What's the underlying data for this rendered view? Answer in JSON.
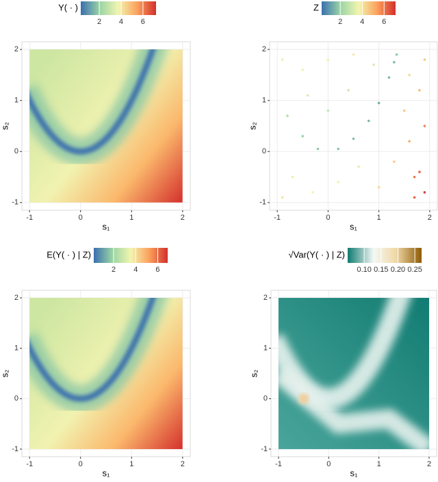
{
  "chart_data": [
    {
      "type": "heatmap",
      "colorbar_label": "Y( · )",
      "xlabel": "s₁",
      "ylabel": "s₂",
      "xlim": [
        -1.15,
        2.15
      ],
      "ylim": [
        -1.15,
        2.15
      ],
      "xticks": [
        -1,
        0,
        1,
        2
      ],
      "yticks": [
        -1,
        0,
        1,
        2
      ],
      "clim": [
        0.3,
        7.2
      ],
      "cticks": [
        2,
        4,
        6
      ],
      "colormap": "spectral",
      "grid": true
    },
    {
      "type": "scatter",
      "colorbar_label": "Z",
      "xlabel": "s₁",
      "ylabel": "s₂",
      "xlim": [
        -1.15,
        2.15
      ],
      "ylim": [
        -1.15,
        2.15
      ],
      "xticks": [
        -1,
        0,
        1,
        2
      ],
      "yticks": [
        -1,
        0,
        1,
        2
      ],
      "clim": [
        0.3,
        7.05
      ],
      "cticks": [
        2,
        4,
        6
      ],
      "colormap": "spectral",
      "grid": true,
      "x": [
        -0.8,
        -0.5,
        -0.2,
        0.2,
        0.5,
        0.8,
        1.0,
        1.2,
        1.3,
        1.35,
        -0.9,
        -0.5,
        0,
        0.5,
        0.9,
        -0.7,
        -0.3,
        0.2,
        0.6,
        1.0,
        1.3,
        1.6,
        1.8,
        1.9,
        1.7,
        1.5,
        1.8,
        1.9,
        1.6,
        -0.9,
        0.0,
        -0.4,
        0.4,
        1.9,
        1.7
      ],
      "values": [
        0.7,
        0.3,
        0.05,
        0.05,
        0.25,
        0.6,
        0.95,
        1.45,
        1.75,
        1.9,
        1.8,
        1.6,
        1.8,
        1.9,
        1.7,
        -0.5,
        -0.8,
        -0.6,
        -0.3,
        -0.7,
        -0.2,
        0.2,
        -0.4,
        -0.8,
        -0.9,
        0.8,
        1.2,
        1.8,
        1.5,
        -0.9,
        0.8,
        1.1,
        1.2,
        0.5,
        -0.5
      ],
      "color_values": [
        2.5,
        2,
        1.8,
        1.7,
        1.6,
        1.5,
        1.4,
        1.5,
        1.6,
        1.8,
        3.5,
        3.6,
        3.8,
        3.9,
        3.2,
        3.5,
        3.7,
        3.6,
        3.4,
        4.2,
        4.5,
        5.2,
        6.2,
        6.8,
        6.3,
        4.6,
        4.8,
        4.5,
        4.2,
        4,
        2.8,
        3.2,
        3.0,
        5.8,
        6.0
      ]
    },
    {
      "type": "heatmap",
      "colorbar_label": "E(Y( · ) | Z)",
      "xlabel": "s₁",
      "ylabel": "s₂",
      "xlim": [
        -1.15,
        2.15
      ],
      "ylim": [
        -1.15,
        2.15
      ],
      "xticks": [
        -1,
        0,
        1,
        2
      ],
      "yticks": [
        -1,
        0,
        1,
        2
      ],
      "clim": [
        0.2,
        6.9
      ],
      "cticks": [
        2,
        4,
        6
      ],
      "colormap": "spectral",
      "grid": true
    },
    {
      "type": "heatmap",
      "colorbar_label": "√Var(Y( · ) | Z)",
      "xlabel": "s₁",
      "ylabel": "s₂",
      "xlim": [
        -1.15,
        2.15
      ],
      "ylim": [
        -1.15,
        2.15
      ],
      "xticks": [
        -1,
        0,
        1,
        2
      ],
      "yticks": [
        -1,
        0,
        1,
        2
      ],
      "clim": [
        0.051,
        0.27
      ],
      "cticks": [
        {
          "value": 0.1,
          "label": "0.10"
        },
        {
          "value": 0.15,
          "label": "0.15"
        },
        {
          "value": 0.2,
          "label": "0.20"
        },
        {
          "value": 0.25,
          "label": "0.25"
        }
      ],
      "colormap": "teal-brown",
      "grid": true
    }
  ]
}
